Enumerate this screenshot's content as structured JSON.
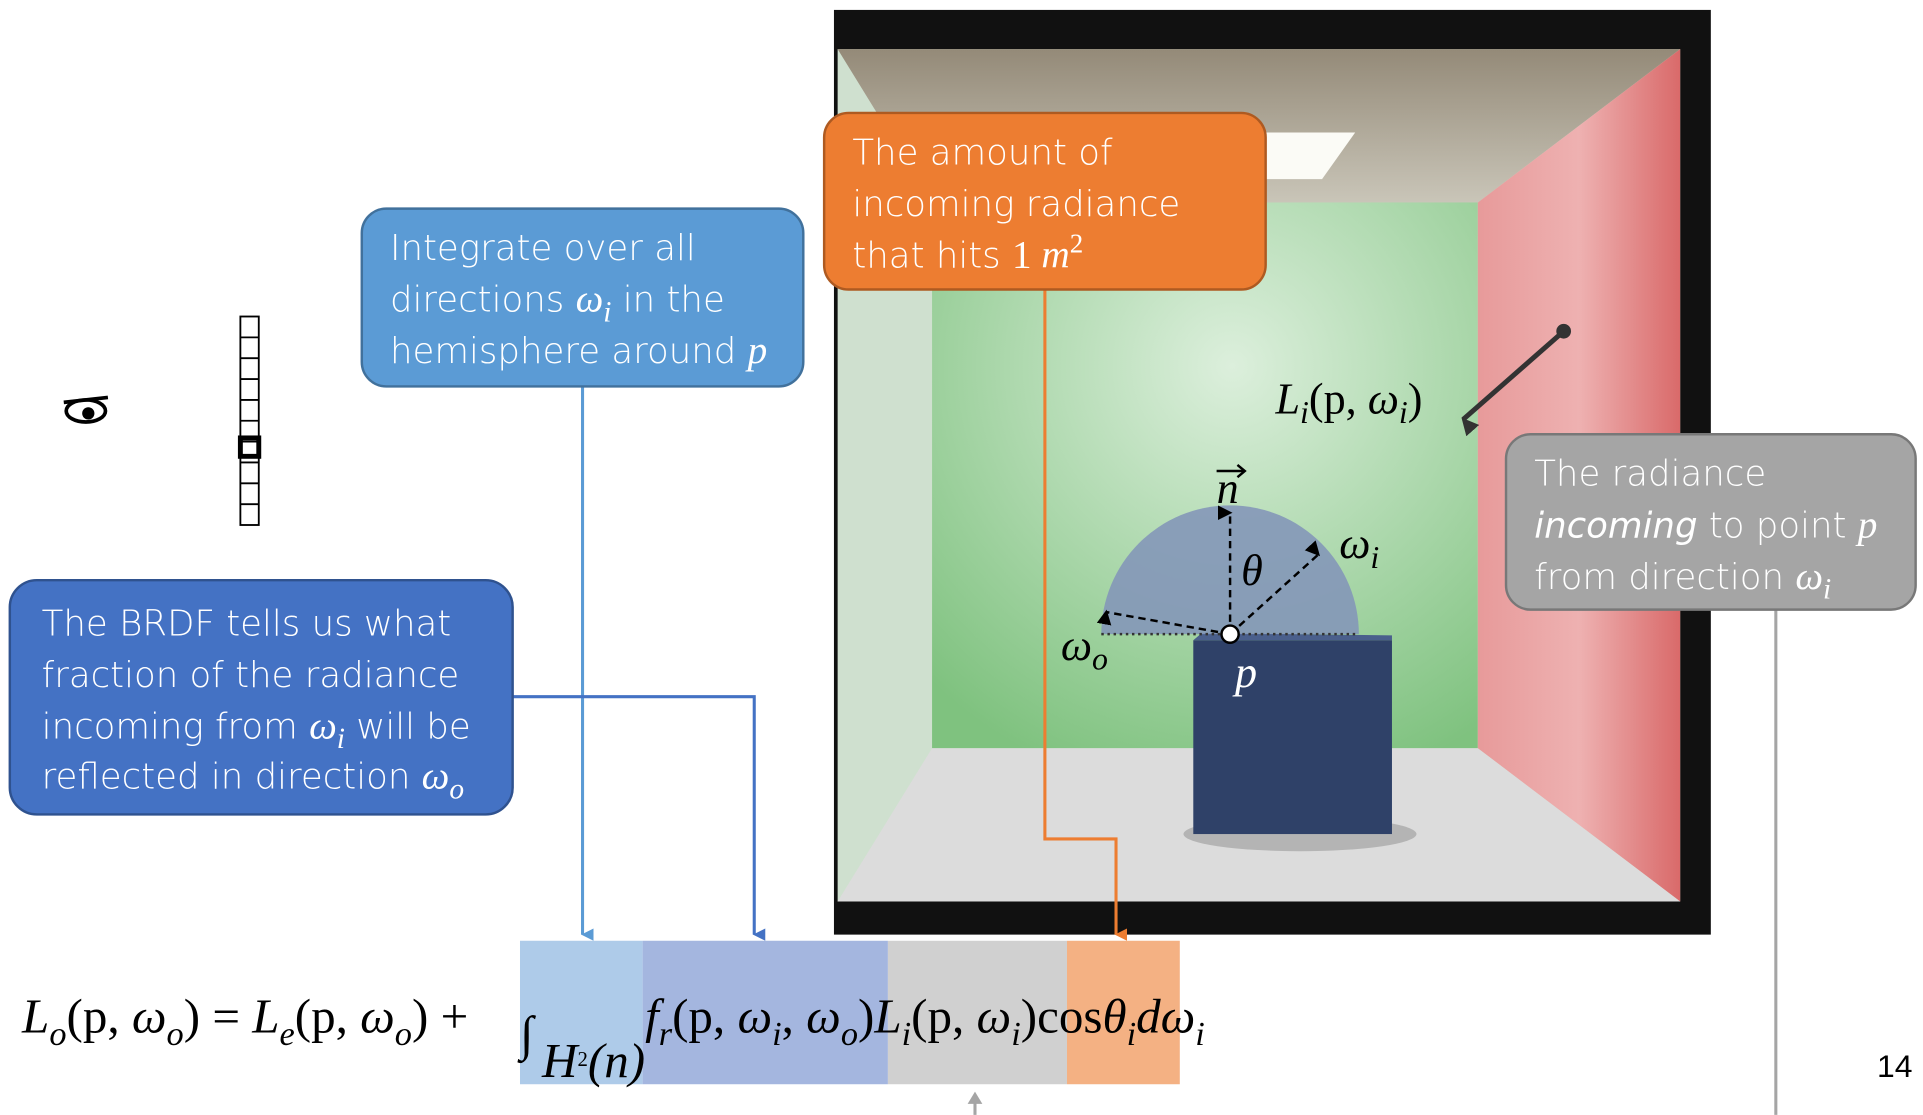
{
  "callouts": {
    "integrate": {
      "lines": [
        [
          "Integrate over all"
        ],
        [
          "directions ",
          "ω",
          "i",
          " in the"
        ],
        [
          "hemisphere around ",
          "p"
        ]
      ]
    },
    "amount": {
      "lines": [
        [
          "The amount of"
        ],
        [
          "incoming radiance"
        ],
        [
          "that hits ",
          "1 ",
          "m",
          "2"
        ]
      ]
    },
    "incoming": {
      "lines": [
        [
          "The radiance"
        ],
        [
          "incoming",
          " to point ",
          "p"
        ],
        [
          "from direction ",
          "ω",
          "i"
        ]
      ]
    },
    "brdf": {
      "lines": [
        [
          "The BRDF tells us what"
        ],
        [
          "fraction of the radiance"
        ],
        [
          "incoming from ",
          "ω",
          "i",
          " will be"
        ],
        [
          "reflected in direction ",
          "ω",
          "o"
        ]
      ]
    }
  },
  "scene_labels": {
    "incident": [
      "L",
      "i",
      "(p, ",
      "ω",
      "i",
      ")"
    ],
    "normal": "n",
    "theta": "θ",
    "omega_i": [
      "ω",
      "i"
    ],
    "omega_o": [
      "ω",
      "o"
    ],
    "point": "p"
  },
  "equation": {
    "lhs": [
      "L",
      "o",
      "(p, ",
      "ω",
      "o",
      ") = "
    ],
    "emitted": [
      "L",
      "e",
      "(p, ",
      "ω",
      "o",
      ") + "
    ],
    "integral": [
      "∫",
      "H",
      "2",
      "(n)"
    ],
    "brdf": [
      "f",
      "r",
      "(p, ",
      "ω",
      "i",
      ", ",
      "ω",
      "o",
      ")"
    ],
    "radiance": [
      "L",
      "i",
      "(p, ",
      "ω",
      "i",
      ")"
    ],
    "cosine": [
      "cos",
      "θ",
      "i"
    ],
    "measure": [
      "d",
      "ω",
      "i"
    ]
  },
  "page_number": "14"
}
